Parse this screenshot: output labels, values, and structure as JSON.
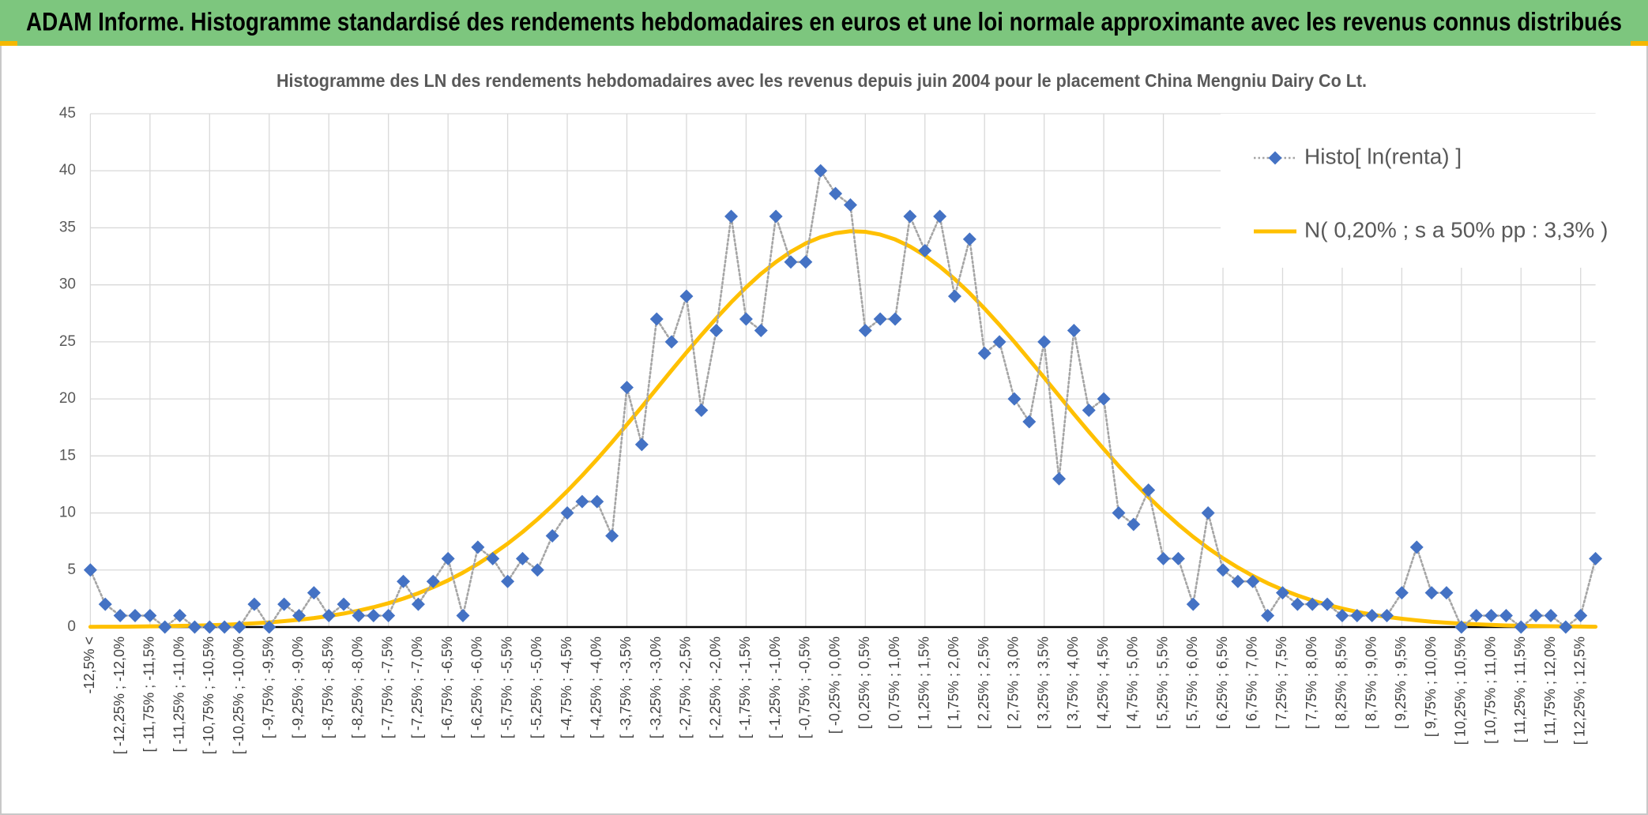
{
  "chart_data": {
    "type": "line",
    "title": "ADAM Informe. Histogramme standardisé des rendements hebdomadaires en euros et une loi normale approximante avec les revenus connus distribués",
    "subtitle": "Histogramme des LN des rendements hebdomadaires avec les revenus depuis juin 2004 pour le placement China Mengniu Dairy Co Lt.",
    "categories": [
      "-12,5% <",
      null,
      "[ -12,25% ; -12,0%",
      null,
      "[ -11,75% ; -11,5%",
      null,
      "[ -11,25% ; -11,0%",
      null,
      "[ -10,75% ; -10,5%",
      null,
      "[ -10,25% ; -10,0%",
      null,
      "[ -9,75% ; -9,5%",
      null,
      "[ -9,25% ; -9,0%",
      null,
      "[ -8,75% ; -8,5%",
      null,
      "[ -8,25% ; -8,0%",
      null,
      "[ -7,75% ; -7,5%",
      null,
      "[ -7,25% ; -7,0%",
      null,
      "[ -6,75% ; -6,5%",
      null,
      "[ -6,25% ; -6,0%",
      null,
      "[ -5,75% ; -5,5%",
      null,
      "[ -5,25% ; -5,0%",
      null,
      "[ -4,75% ; -4,5%",
      null,
      "[ -4,25% ; -4,0%",
      null,
      "[ -3,75% ; -3,5%",
      null,
      "[ -3,25% ; -3,0%",
      null,
      "[ -2,75% ; -2,5%",
      null,
      "[ -2,25% ; -2,0%",
      null,
      "[ -1,75% ; -1,5%",
      null,
      "[ -1,25% ; -1,0%",
      null,
      "[ -0,75% ; -0,5%",
      null,
      "[ -0,25% ; 0,0%",
      null,
      "[ 0,25% ; 0,5%",
      null,
      "[ 0,75% ; 1,0%",
      null,
      "[ 1,25% ; 1,5%",
      null,
      "[ 1,75% ; 2,0%",
      null,
      "[ 2,25% ; 2,5%",
      null,
      "[ 2,75% ; 3,0%",
      null,
      "[ 3,25% ; 3,5%",
      null,
      "[ 3,75% ; 4,0%",
      null,
      "[ 4,25% ; 4,5%",
      null,
      "[ 4,75% ; 5,0%",
      null,
      "[ 5,25% ; 5,5%",
      null,
      "[ 5,75% ; 6,0%",
      null,
      "[ 6,25% ; 6,5%",
      null,
      "[ 6,75% ; 7,0%",
      null,
      "[ 7,25% ; 7,5%",
      null,
      "[ 7,75% ; 8,0%",
      null,
      "[ 8,25% ; 8,5%",
      null,
      "[ 8,75% ; 9,0%",
      null,
      "[ 9,25% ; 9,5%",
      null,
      "[ 9,75% ; 10,0%",
      null,
      "[ 10,25% ; 10,5%",
      null,
      "[ 10,75% ; 11,0%",
      null,
      "[ 11,25% ; 11,5%",
      null,
      "[ 11,75% ; 12,0%",
      null,
      "[ 12,25% ; 12,5%",
      null
    ],
    "series": [
      {
        "name": "Histo[ ln(renta) ]",
        "color": "#4472c4",
        "line_color": "#a5a5a5",
        "line_style": "dotted",
        "marker": "diamond",
        "values": [
          5,
          2,
          1,
          1,
          1,
          0,
          1,
          0,
          0,
          0,
          0,
          2,
          0,
          2,
          1,
          3,
          1,
          2,
          1,
          1,
          1,
          4,
          2,
          4,
          6,
          1,
          7,
          6,
          4,
          6,
          5,
          8,
          10,
          11,
          11,
          8,
          21,
          16,
          27,
          25,
          29,
          19,
          26,
          36,
          27,
          26,
          36,
          32,
          32,
          40,
          38,
          37,
          26,
          27,
          27,
          36,
          33,
          36,
          29,
          34,
          24,
          25,
          20,
          18,
          25,
          13,
          26,
          19,
          20,
          10,
          9,
          12,
          6,
          6,
          2,
          10,
          5,
          4,
          4,
          1,
          3,
          2,
          2,
          2,
          1,
          1,
          1,
          1,
          3,
          7,
          3,
          3,
          0,
          1,
          1,
          1,
          0,
          1,
          1,
          0,
          1,
          6
        ]
      },
      {
        "name": "N( 0,20% ; s a 50% pp : 3,3% )",
        "color": "#ffc000",
        "line_style": "solid",
        "values": [
          0.02,
          0.03,
          0.03,
          0.04,
          0.06,
          0.07,
          0.1,
          0.12,
          0.16,
          0.2,
          0.26,
          0.33,
          0.41,
          0.52,
          0.64,
          0.79,
          0.97,
          1.18,
          1.44,
          1.74,
          2.09,
          2.49,
          2.96,
          3.49,
          4.09,
          4.77,
          5.53,
          6.38,
          7.31,
          8.33,
          9.44,
          10.64,
          11.92,
          13.28,
          14.71,
          16.2,
          17.74,
          19.3,
          20.9,
          22.5,
          24.07,
          25.6,
          27.07,
          28.47,
          29.78,
          30.97,
          32.0,
          32.9,
          33.63,
          34.18,
          34.53,
          34.7,
          34.65,
          34.41,
          33.98,
          33.36,
          32.57,
          31.6,
          30.5,
          29.27,
          27.92,
          26.49,
          25.0,
          23.44,
          21.87,
          20.27,
          18.67,
          17.12,
          15.6,
          14.13,
          12.73,
          11.4,
          10.15,
          8.99,
          7.91,
          6.92,
          6.03,
          5.22,
          4.49,
          3.84,
          3.27,
          2.77,
          2.33,
          1.95,
          1.62,
          1.33,
          1.09,
          0.89,
          0.73,
          0.59,
          0.47,
          0.38,
          0.3,
          0.24,
          0.19,
          0.14,
          0.11,
          0.09,
          0.07,
          0.05,
          0.04,
          0.03
        ]
      }
    ],
    "ylim": [
      0,
      45
    ],
    "yticks": [
      0,
      5,
      10,
      15,
      20,
      25,
      30,
      35,
      40,
      45
    ],
    "grid": true,
    "legend": "upper right"
  }
}
